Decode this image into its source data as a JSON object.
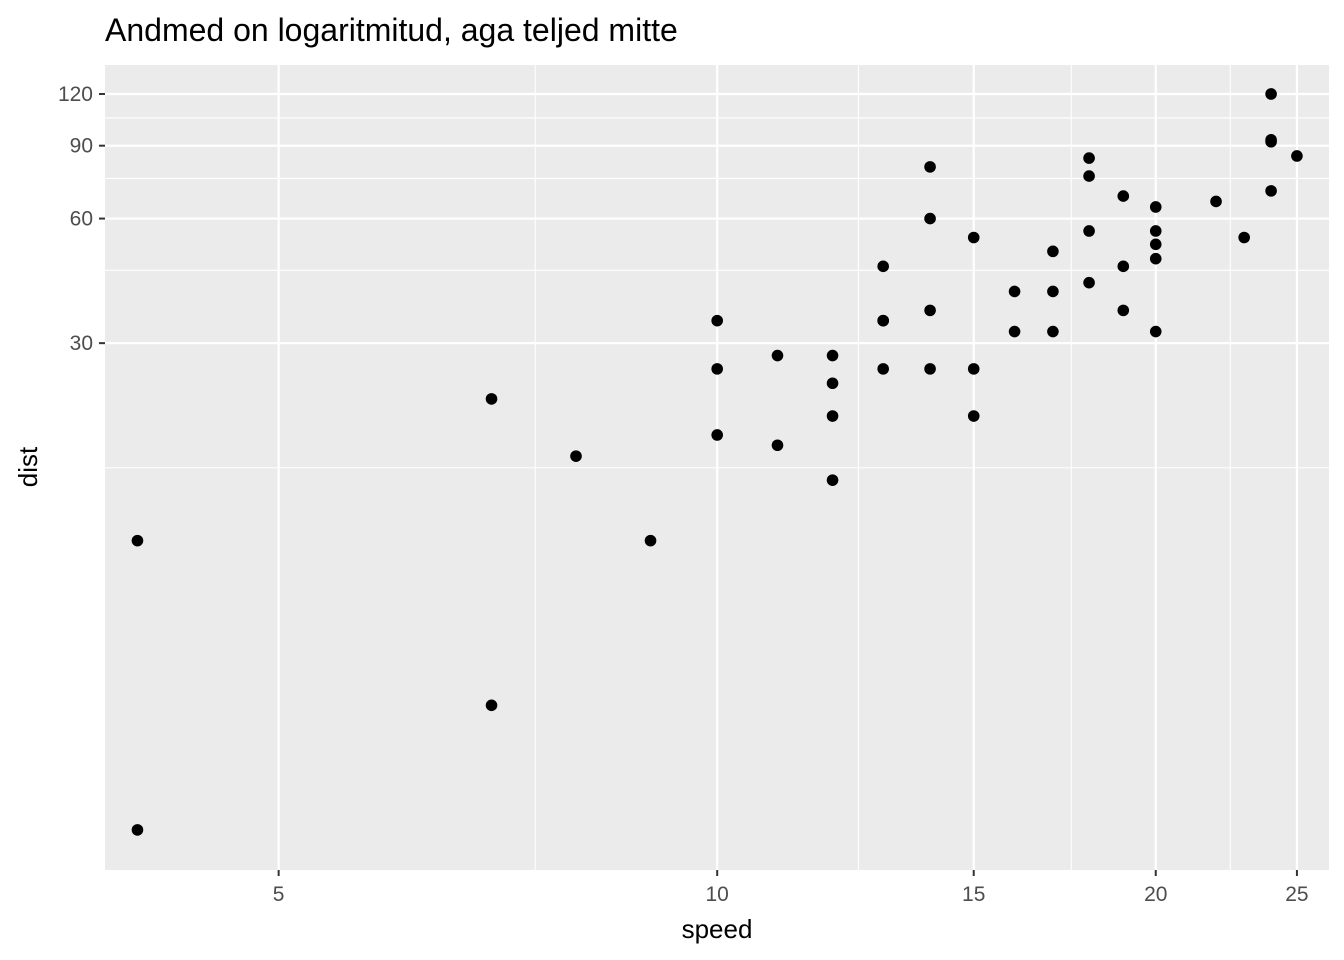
{
  "chart_data": {
    "type": "scatter",
    "title": "Andmed on logaritmitud, aga teljed mitte",
    "xlabel": "speed",
    "ylabel": "dist",
    "x_scale": "log",
    "y_scale": "log",
    "xlim": [
      3.8,
      26.3
    ],
    "ylim": [
      1.6,
      141
    ],
    "x_ticks": [
      5,
      10,
      15,
      20,
      25
    ],
    "x_tick_labels": [
      "5",
      "10",
      "15",
      "20",
      "25"
    ],
    "x_minor": [
      7.5,
      12.5,
      17.5,
      22.5
    ],
    "y_ticks": [
      30,
      60,
      90,
      120
    ],
    "y_tick_labels": [
      "30",
      "60",
      "90",
      "120"
    ],
    "y_minor": [
      15,
      45,
      75,
      105
    ],
    "grid": true,
    "legend": "none",
    "colors": {
      "panel": "#ebebeb",
      "grid": "#ffffff",
      "point": "#000000",
      "tick": "#333333"
    },
    "points": [
      {
        "x": 4,
        "y": 2
      },
      {
        "x": 4,
        "y": 10
      },
      {
        "x": 7,
        "y": 4
      },
      {
        "x": 7,
        "y": 22
      },
      {
        "x": 8,
        "y": 16
      },
      {
        "x": 9,
        "y": 10
      },
      {
        "x": 10,
        "y": 18
      },
      {
        "x": 10,
        "y": 26
      },
      {
        "x": 10,
        "y": 34
      },
      {
        "x": 11,
        "y": 17
      },
      {
        "x": 11,
        "y": 28
      },
      {
        "x": 12,
        "y": 14
      },
      {
        "x": 12,
        "y": 20
      },
      {
        "x": 12,
        "y": 24
      },
      {
        "x": 12,
        "y": 28
      },
      {
        "x": 13,
        "y": 26
      },
      {
        "x": 13,
        "y": 34
      },
      {
        "x": 13,
        "y": 34
      },
      {
        "x": 13,
        "y": 46
      },
      {
        "x": 14,
        "y": 26
      },
      {
        "x": 14,
        "y": 36
      },
      {
        "x": 14,
        "y": 60
      },
      {
        "x": 14,
        "y": 80
      },
      {
        "x": 15,
        "y": 20
      },
      {
        "x": 15,
        "y": 26
      },
      {
        "x": 15,
        "y": 54
      },
      {
        "x": 16,
        "y": 32
      },
      {
        "x": 16,
        "y": 40
      },
      {
        "x": 17,
        "y": 32
      },
      {
        "x": 17,
        "y": 40
      },
      {
        "x": 17,
        "y": 50
      },
      {
        "x": 18,
        "y": 42
      },
      {
        "x": 18,
        "y": 56
      },
      {
        "x": 18,
        "y": 76
      },
      {
        "x": 18,
        "y": 84
      },
      {
        "x": 19,
        "y": 36
      },
      {
        "x": 19,
        "y": 46
      },
      {
        "x": 19,
        "y": 68
      },
      {
        "x": 20,
        "y": 32
      },
      {
        "x": 20,
        "y": 48
      },
      {
        "x": 20,
        "y": 52
      },
      {
        "x": 20,
        "y": 56
      },
      {
        "x": 20,
        "y": 64
      },
      {
        "x": 22,
        "y": 66
      },
      {
        "x": 23,
        "y": 54
      },
      {
        "x": 24,
        "y": 70
      },
      {
        "x": 24,
        "y": 92
      },
      {
        "x": 24,
        "y": 93
      },
      {
        "x": 24,
        "y": 120
      },
      {
        "x": 25,
        "y": 85
      }
    ]
  }
}
